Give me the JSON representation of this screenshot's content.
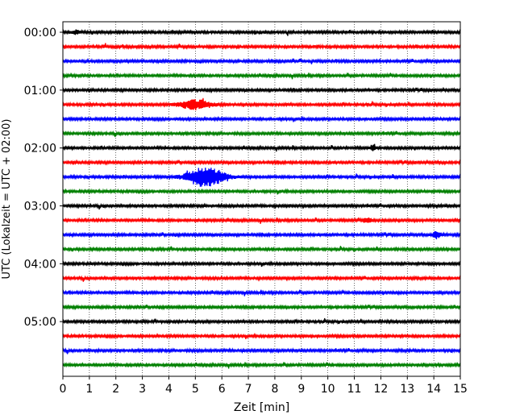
{
  "chart_data": {
    "type": "line",
    "xlabel": "Zeit  [min]",
    "ylabel": "UTC (Lokalzeit = UTC + 02:00)",
    "xlim": [
      0,
      15
    ],
    "x_ticks": [
      "0",
      "1",
      "2",
      "3",
      "4",
      "5",
      "6",
      "7",
      "8",
      "9",
      "10",
      "11",
      "12",
      "13",
      "14",
      "15"
    ],
    "y_ticks": [
      "00:00",
      "01:00",
      "02:00",
      "03:00",
      "04:00",
      "05:00"
    ],
    "grid": "vertical dotted at each minute",
    "legend": "none",
    "trace_colors": [
      "#000000",
      "#ff0000",
      "#0000ff",
      "#008000"
    ],
    "traces_count": 24,
    "trace_interval_minutes": 15,
    "events": [
      {
        "trace": 5,
        "center_min": 5.0,
        "amplitude": 0.35,
        "width_min": 1.2
      },
      {
        "trace": 10,
        "center_min": 5.4,
        "amplitude": 0.75,
        "width_min": 1.4
      },
      {
        "trace": 14,
        "center_min": 14.1,
        "amplitude": 0.25,
        "width_min": 0.3
      },
      {
        "trace": 13,
        "center_min": 11.5,
        "amplitude": 0.2,
        "width_min": 0.3
      },
      {
        "trace": 8,
        "center_min": 11.7,
        "amplitude": 0.2,
        "width_min": 0.2
      },
      {
        "trace": 0,
        "center_min": 0.5,
        "amplitude": 0.15,
        "width_min": 0.3
      }
    ]
  }
}
